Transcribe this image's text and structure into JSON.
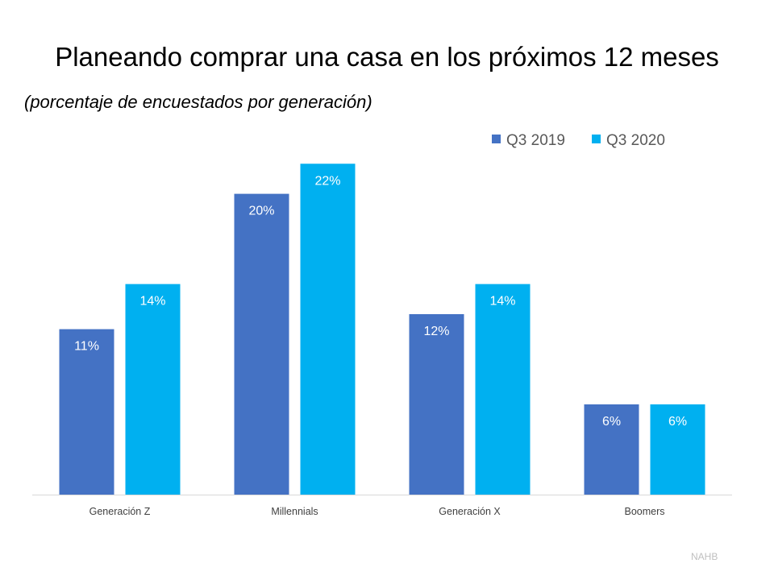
{
  "chart_data": {
    "type": "bar",
    "title": "Planeando comprar una casa en los próximos 12 meses",
    "subtitle": "(porcentaje de encuestados por generación)",
    "categories": [
      "Generación Z",
      "Millennials",
      "Generación X",
      "Boomers"
    ],
    "series": [
      {
        "name": "Q3 2019",
        "values": [
          11,
          20,
          12,
          6
        ],
        "color": "#4472C4"
      },
      {
        "name": "Q3 2020",
        "values": [
          14,
          22,
          14,
          6
        ],
        "color": "#00B0F0"
      }
    ],
    "data_label_suffix": "%",
    "ylim": [
      0,
      22
    ],
    "grid": false,
    "legend": "top-right",
    "source": "NAHB"
  }
}
